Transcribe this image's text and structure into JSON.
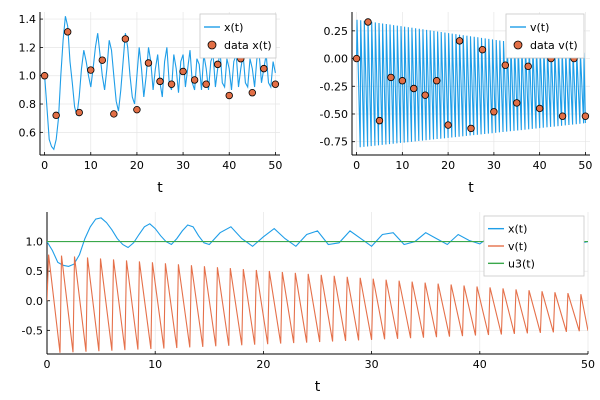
{
  "chart_data": [
    {
      "type": "line",
      "panel": "top-left",
      "xlabel": "t",
      "xlim": [
        -1,
        51
      ],
      "ylim": [
        0.44,
        1.45
      ],
      "xticks": [
        0,
        10,
        20,
        30,
        40,
        50
      ],
      "xtick_labels": [
        "0",
        "10",
        "20",
        "30",
        "40",
        "50"
      ],
      "yticks": [
        0.6,
        0.8,
        1.0,
        1.2,
        1.4
      ],
      "ytick_labels": [
        "0.6",
        "0.8",
        "1.0",
        "1.2",
        "1.4"
      ],
      "grid": true,
      "legend": "top-right",
      "series": [
        {
          "name": "x(t)",
          "kind": "line",
          "color": "#1f9ee8",
          "x": [
            0,
            0.5,
            1,
            1.5,
            2,
            2.5,
            3,
            3.5,
            4,
            4.5,
            5,
            5.5,
            6,
            6.5,
            7,
            7.5,
            8,
            8.5,
            9,
            9.5,
            10,
            10.5,
            11,
            11.5,
            12,
            12.5,
            13,
            13.5,
            14,
            14.5,
            15,
            15.5,
            16,
            16.5,
            17,
            17.5,
            18,
            18.5,
            19,
            19.5,
            20,
            20.5,
            21,
            21.5,
            22,
            22.5,
            23,
            23.5,
            24,
            24.5,
            25,
            25.5,
            26,
            26.5,
            27,
            27.5,
            28,
            28.5,
            29,
            29.5,
            30,
            30.5,
            31,
            31.5,
            32,
            32.5,
            33,
            33.5,
            34,
            34.5,
            35,
            35.5,
            36,
            36.5,
            37,
            37.5,
            38,
            38.5,
            39,
            39.5,
            40,
            40.5,
            41,
            41.5,
            42,
            42.5,
            43,
            43.5,
            44,
            44.5,
            45,
            45.5,
            46,
            46.5,
            47,
            47.5,
            48,
            48.5,
            49,
            49.5,
            50
          ],
          "y": [
            1.0,
            0.78,
            0.55,
            0.5,
            0.48,
            0.55,
            0.7,
            1.0,
            1.25,
            1.42,
            1.35,
            1.1,
            0.95,
            0.78,
            0.72,
            0.85,
            1.05,
            1.18,
            1.1,
            1.0,
            0.92,
            1.05,
            1.2,
            1.3,
            1.15,
            1.0,
            0.9,
            1.05,
            1.25,
            1.18,
            1.0,
            0.82,
            0.75,
            0.9,
            1.1,
            1.3,
            1.2,
            1.0,
            0.85,
            0.8,
            1.0,
            1.2,
            1.05,
            0.85,
            1.0,
            1.2,
            1.1,
            0.9,
            1.05,
            1.15,
            0.95,
            0.85,
            1.1,
            1.2,
            0.95,
            0.9,
            1.15,
            1.05,
            0.88,
            1.1,
            1.15,
            0.92,
            1.05,
            1.18,
            0.95,
            0.9,
            1.12,
            1.08,
            0.9,
            1.15,
            1.05,
            0.9,
            1.1,
            1.15,
            0.92,
            1.05,
            1.18,
            0.95,
            0.92,
            1.12,
            1.05,
            0.9,
            1.1,
            1.15,
            0.92,
            1.05,
            1.15,
            0.95,
            0.92,
            1.12,
            1.05,
            0.92,
            1.12,
            1.15,
            0.95,
            1.05,
            1.15,
            0.95,
            0.92,
            1.1,
            1.02
          ]
        },
        {
          "name": "data x(t)",
          "kind": "scatter",
          "color": "#e26f46",
          "x": [
            0,
            2.5,
            5,
            7.5,
            10,
            12.5,
            15,
            17.5,
            20,
            22.5,
            25,
            27.5,
            30,
            32.5,
            35,
            37.5,
            40,
            42.5,
            45,
            47.5,
            50
          ],
          "y": [
            1.0,
            0.72,
            1.31,
            0.74,
            1.04,
            1.11,
            0.73,
            1.26,
            0.76,
            1.09,
            0.96,
            0.94,
            1.03,
            0.97,
            0.94,
            1.08,
            0.86,
            1.12,
            0.88,
            1.05,
            0.94
          ]
        }
      ]
    },
    {
      "type": "line",
      "panel": "top-right",
      "xlabel": "t",
      "xlim": [
        -1,
        51
      ],
      "ylim": [
        -0.87,
        0.42
      ],
      "xticks": [
        0,
        10,
        20,
        30,
        40,
        50
      ],
      "xtick_labels": [
        "0",
        "10",
        "20",
        "30",
        "40",
        "50"
      ],
      "yticks": [
        -0.75,
        -0.5,
        -0.25,
        0.0,
        0.25
      ],
      "ytick_labels": [
        "-0.75",
        "-0.50",
        "-0.25",
        "0.00",
        "0.25"
      ],
      "grid": true,
      "legend": "top-right",
      "series": [
        {
          "name": "v(t)",
          "kind": "sawtooth",
          "color": "#1f9ee8",
          "x_start": 0,
          "x_end": 50,
          "period": 0.8,
          "peak": 0.35,
          "trough": -0.8,
          "decay_end_peak": 0.05,
          "decay_end_trough": -0.58
        },
        {
          "name": "data v(t)",
          "kind": "scatter",
          "color": "#e26f46",
          "x": [
            0,
            2.5,
            5,
            7.5,
            10,
            12.5,
            15,
            17.5,
            20,
            22.5,
            25,
            27.5,
            30,
            32.5,
            35,
            37.5,
            40,
            42.5,
            45,
            47.5,
            50
          ],
          "y": [
            0.0,
            0.33,
            -0.56,
            -0.17,
            -0.2,
            -0.27,
            -0.33,
            -0.2,
            -0.6,
            0.16,
            -0.63,
            0.08,
            -0.48,
            -0.06,
            -0.4,
            -0.07,
            -0.45,
            0.0,
            -0.52,
            0.0,
            -0.52
          ]
        }
      ]
    },
    {
      "type": "line",
      "panel": "bottom",
      "xlabel": "t",
      "xlim": [
        0,
        50
      ],
      "ylim": [
        -0.9,
        1.5
      ],
      "xticks": [
        0,
        10,
        20,
        30,
        40,
        50
      ],
      "xtick_labels": [
        "0",
        "10",
        "20",
        "30",
        "40",
        "50"
      ],
      "yticks": [
        -0.5,
        0.0,
        0.5,
        1.0
      ],
      "ytick_labels": [
        "-0.5",
        "0.0",
        "0.5",
        "1.0"
      ],
      "grid": true,
      "legend": "top-right",
      "series": [
        {
          "name": "x(t)",
          "kind": "line",
          "color": "#1f9ee8",
          "x": [
            0,
            0.5,
            1,
            1.5,
            2,
            2.5,
            3,
            3.5,
            4,
            4.5,
            5,
            5.5,
            6,
            6.5,
            7,
            7.5,
            8,
            8.5,
            9,
            9.5,
            10,
            10.5,
            11,
            11.5,
            12,
            12.5,
            13,
            13.5,
            14,
            14.5,
            15,
            16,
            17,
            18,
            19,
            20,
            21,
            22,
            23,
            24,
            25,
            26,
            27,
            28,
            29,
            30,
            31,
            32,
            33,
            34,
            35,
            36,
            37,
            38,
            39,
            40,
            41,
            42,
            43,
            44,
            45,
            46,
            47,
            48,
            49,
            50
          ],
          "y": [
            1.0,
            0.85,
            0.65,
            0.6,
            0.58,
            0.62,
            0.78,
            1.05,
            1.25,
            1.38,
            1.4,
            1.32,
            1.2,
            1.05,
            0.95,
            0.9,
            0.98,
            1.12,
            1.25,
            1.3,
            1.22,
            1.1,
            1.0,
            0.95,
            1.05,
            1.18,
            1.28,
            1.25,
            1.1,
            0.98,
            0.95,
            1.15,
            1.25,
            1.05,
            0.92,
            1.08,
            1.22,
            1.05,
            0.92,
            1.12,
            1.18,
            0.95,
            0.98,
            1.18,
            1.05,
            0.92,
            1.12,
            1.15,
            0.95,
            1.0,
            1.15,
            1.05,
            0.95,
            1.12,
            1.02,
            0.96,
            1.1,
            1.06,
            0.95,
            1.08,
            1.04,
            0.96,
            1.06,
            1.04,
            0.96,
            1.0
          ]
        },
        {
          "name": "v(t)",
          "kind": "sawtooth",
          "color": "#e5704a",
          "x_start": 0,
          "x_end": 50,
          "period": 1.2,
          "peak": 0.78,
          "trough": -0.88,
          "decay_end_peak": 0.1,
          "decay_end_trough": -0.5
        },
        {
          "name": "u3(t)",
          "kind": "line",
          "color": "#3aa84b",
          "x": [
            0,
            50
          ],
          "y": [
            1.0,
            1.0
          ]
        }
      ]
    }
  ]
}
